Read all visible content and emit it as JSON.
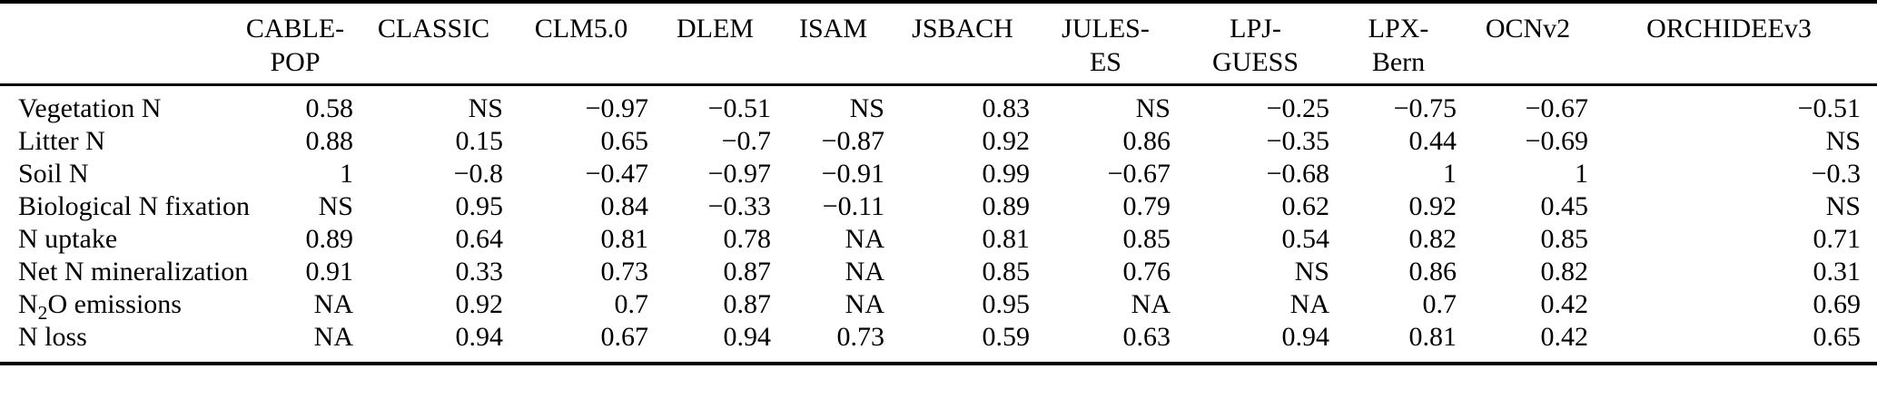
{
  "table": {
    "description": "Correlation table of nitrogen variables across terrestrial biosphere models",
    "columns": [
      "CABLE-POP",
      "CLASSIC",
      "CLM5.0",
      "DLEM",
      "ISAM",
      "JSBACH",
      "JULES-ES",
      "LPJ-GUESS",
      "LPX-Bern",
      "OCNv2",
      "ORCHIDEEv3"
    ],
    "column_header_lines": [
      [
        "CABLE-",
        "POP"
      ],
      [
        "CLASSIC"
      ],
      [
        "CLM5.0"
      ],
      [
        "DLEM"
      ],
      [
        "ISAM"
      ],
      [
        "JSBACH"
      ],
      [
        "JULES-",
        "ES"
      ],
      [
        "LPJ-",
        "GUESS"
      ],
      [
        "LPX-",
        "Bern"
      ],
      [
        "OCNv2"
      ],
      [
        "ORCHIDEEv3"
      ]
    ],
    "rows": [
      {
        "label": "Vegetation N",
        "values": [
          "0.58",
          "NS",
          "−0.97",
          "−0.51",
          "NS",
          "0.83",
          "NS",
          "−0.25",
          "−0.75",
          "−0.67",
          "−0.51"
        ]
      },
      {
        "label": "Litter N",
        "values": [
          "0.88",
          "0.15",
          "0.65",
          "−0.7",
          "−0.87",
          "0.92",
          "0.86",
          "−0.35",
          "0.44",
          "−0.69",
          "NS"
        ]
      },
      {
        "label": "Soil N",
        "values": [
          "1",
          "−0.8",
          "−0.47",
          "−0.97",
          "−0.91",
          "0.99",
          "−0.67",
          "−0.68",
          "1",
          "1",
          "−0.3"
        ]
      },
      {
        "label": "Biological N fixation",
        "values": [
          "NS",
          "0.95",
          "0.84",
          "−0.33",
          "−0.11",
          "0.89",
          "0.79",
          "0.62",
          "0.92",
          "0.45",
          "NS"
        ]
      },
      {
        "label": "N uptake",
        "values": [
          "0.89",
          "0.64",
          "0.81",
          "0.78",
          "NA",
          "0.81",
          "0.85",
          "0.54",
          "0.82",
          "0.85",
          "0.71"
        ]
      },
      {
        "label": "Net N mineralization",
        "values": [
          "0.91",
          "0.33",
          "0.73",
          "0.87",
          "NA",
          "0.85",
          "0.76",
          "NS",
          "0.86",
          "0.82",
          "0.31"
        ]
      },
      {
        "label": "N₂O emissions",
        "values": [
          "NA",
          "0.92",
          "0.7",
          "0.87",
          "NA",
          "0.95",
          "NA",
          "NA",
          "0.7",
          "0.42",
          "0.69"
        ]
      },
      {
        "label": "N loss",
        "values": [
          "NA",
          "0.94",
          "0.67",
          "0.94",
          "0.73",
          "0.59",
          "0.63",
          "0.94",
          "0.81",
          "0.42",
          "0.65"
        ]
      }
    ]
  }
}
